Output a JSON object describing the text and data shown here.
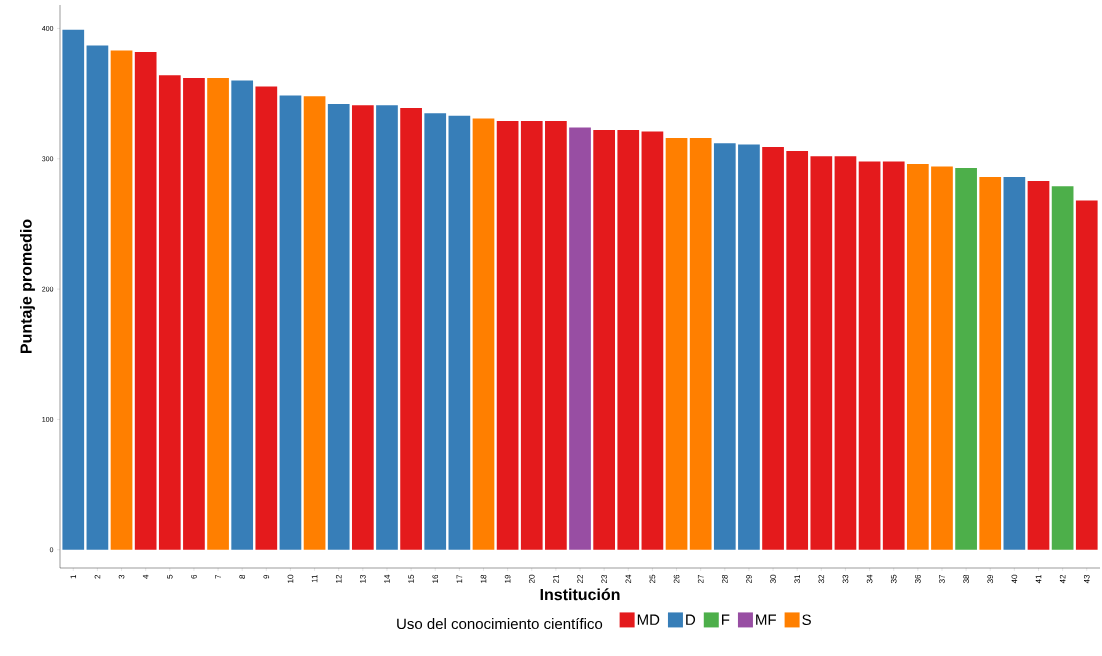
{
  "chart_data": {
    "type": "bar",
    "xlabel": "Institución",
    "ylabel": "Puntaje promedio",
    "legend_title": "Uso del conocimiento científico",
    "categories": [
      "1",
      "2",
      "3",
      "4",
      "5",
      "6",
      "7",
      "8",
      "9",
      "10",
      "11",
      "12",
      "13",
      "14",
      "15",
      "16",
      "17",
      "18",
      "19",
      "20",
      "21",
      "22",
      "23",
      "24",
      "25",
      "26",
      "27",
      "28",
      "29",
      "30",
      "31",
      "32",
      "33",
      "34",
      "35",
      "36",
      "37",
      "38",
      "39",
      "40",
      "41",
      "42",
      "43"
    ],
    "series": [
      {
        "name": "MD",
        "color": "#e41a1c",
        "values": [
          null,
          null,
          null,
          382,
          364,
          362,
          null,
          null,
          355.5,
          null,
          null,
          null,
          341,
          null,
          339,
          null,
          null,
          null,
          329,
          329,
          329,
          null,
          322,
          322,
          321,
          null,
          null,
          null,
          null,
          309,
          306,
          302,
          302,
          298,
          298,
          null,
          null,
          null,
          null,
          null,
          283,
          null,
          268
        ]
      },
      {
        "name": "D",
        "color": "#377eb8",
        "values": [
          399,
          387,
          null,
          null,
          null,
          null,
          null,
          360,
          null,
          348.5,
          null,
          342,
          null,
          341,
          null,
          335,
          333,
          null,
          null,
          null,
          null,
          null,
          null,
          null,
          null,
          null,
          null,
          312,
          311,
          null,
          null,
          null,
          null,
          null,
          null,
          null,
          null,
          null,
          null,
          286,
          null,
          null,
          null
        ]
      },
      {
        "name": "F",
        "color": "#4daf4a",
        "values": [
          null,
          null,
          null,
          null,
          null,
          null,
          null,
          null,
          null,
          null,
          null,
          null,
          null,
          null,
          null,
          null,
          null,
          null,
          null,
          null,
          null,
          null,
          null,
          null,
          null,
          null,
          null,
          null,
          null,
          null,
          null,
          null,
          null,
          null,
          null,
          null,
          null,
          293,
          null,
          null,
          null,
          279,
          null
        ]
      },
      {
        "name": "MF",
        "color": "#984ea3",
        "values": [
          null,
          null,
          null,
          null,
          null,
          null,
          null,
          null,
          null,
          null,
          null,
          null,
          null,
          null,
          null,
          null,
          null,
          null,
          null,
          null,
          null,
          324,
          null,
          null,
          null,
          null,
          null,
          null,
          null,
          null,
          null,
          null,
          null,
          null,
          null,
          null,
          null,
          null,
          null,
          null,
          null,
          null,
          null
        ]
      },
      {
        "name": "S",
        "color": "#ff7f00",
        "values": [
          null,
          null,
          383,
          null,
          null,
          null,
          362,
          null,
          null,
          null,
          348,
          null,
          null,
          null,
          null,
          null,
          null,
          331,
          null,
          null,
          null,
          null,
          null,
          null,
          null,
          316,
          316,
          null,
          null,
          null,
          null,
          null,
          null,
          null,
          null,
          296,
          294,
          null,
          286,
          null,
          null,
          null,
          null
        ]
      }
    ],
    "ylim": [
      -14,
      418
    ],
    "yticks": [
      0,
      100,
      200,
      300,
      400
    ],
    "legend": "bottom"
  }
}
